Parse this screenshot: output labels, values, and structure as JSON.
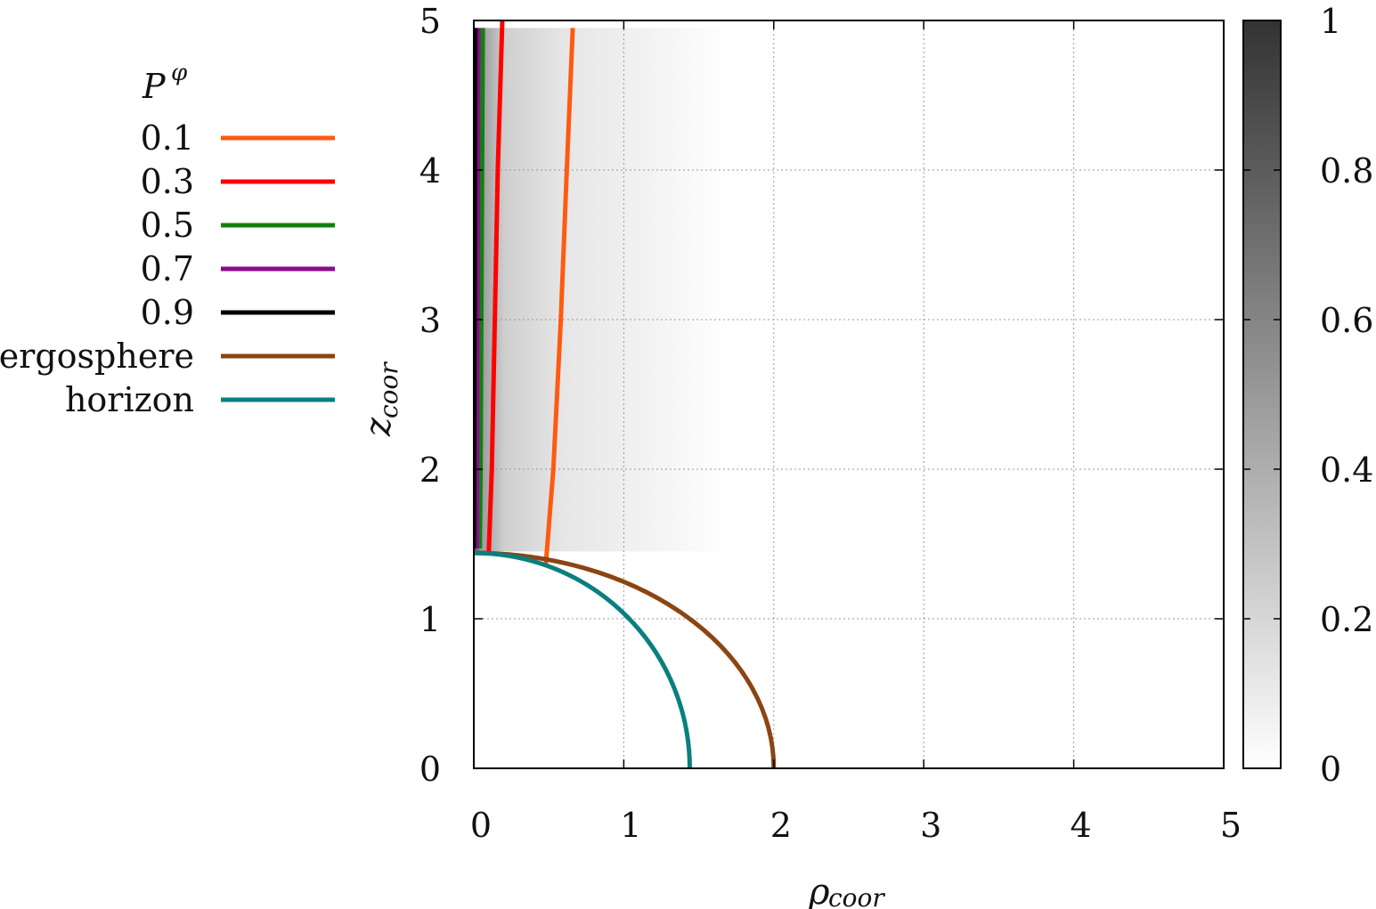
{
  "chart_data": {
    "type": "heatmap",
    "x_ticks": [
      "0",
      "1",
      "2",
      "3",
      "4",
      "5"
    ],
    "y_ticks": [
      "0",
      "1",
      "2",
      "3",
      "4",
      "5"
    ],
    "colorbar_ticks": [
      "0",
      "0.2",
      "0.4",
      "0.6",
      "0.8",
      "1"
    ],
    "xlim": [
      0,
      5
    ],
    "ylim": [
      0,
      5
    ],
    "colorbar_range": [
      0,
      1
    ],
    "grid": true,
    "xlabel": {
      "main": "ρ",
      "sub": "coor"
    },
    "ylabel": {
      "main": "z",
      "sub": "coor"
    },
    "legend": {
      "title": "P",
      "title_superscript": "φ",
      "position": "left"
    },
    "series": [
      {
        "name": "0.1",
        "color": "#ff5a10",
        "points": [
          [
            0.48,
            1.36
          ],
          [
            0.53,
            2.0
          ],
          [
            0.58,
            3.0
          ],
          [
            0.62,
            4.0
          ],
          [
            0.66,
            4.95
          ]
        ]
      },
      {
        "name": "0.3",
        "color": "#ff0000",
        "points": [
          [
            0.1,
            1.45
          ],
          [
            0.12,
            2.0
          ],
          [
            0.14,
            3.0
          ],
          [
            0.16,
            4.0
          ],
          [
            0.19,
            5.0
          ]
        ]
      },
      {
        "name": "0.5",
        "color": "#118011",
        "points": [
          [
            0.04,
            1.47
          ],
          [
            0.045,
            2.0
          ],
          [
            0.05,
            3.0
          ],
          [
            0.055,
            4.0
          ],
          [
            0.06,
            4.95
          ]
        ]
      },
      {
        "name": "0.7",
        "color": "#8b0a8b",
        "points": [
          [
            0.02,
            1.47
          ],
          [
            0.022,
            2.5
          ],
          [
            0.025,
            3.5
          ],
          [
            0.03,
            4.95
          ]
        ]
      },
      {
        "name": "0.9",
        "color": "#000000",
        "points": [
          [
            0.0,
            1.47
          ],
          [
            0.005,
            3.0
          ],
          [
            0.01,
            4.95
          ]
        ]
      },
      {
        "name": "ergosphere",
        "color": "#8b4513",
        "shape": "ellipse",
        "rho_radius": 2.0,
        "z_radius": 1.44
      },
      {
        "name": "horizon",
        "color": "#0a7f7f",
        "shape": "ellipse",
        "rho_radius": 1.44,
        "z_radius": 1.44
      }
    ],
    "heatmap_band": {
      "rho_max": 1.7,
      "z_min": 1.45,
      "z_max": 4.95
    }
  }
}
